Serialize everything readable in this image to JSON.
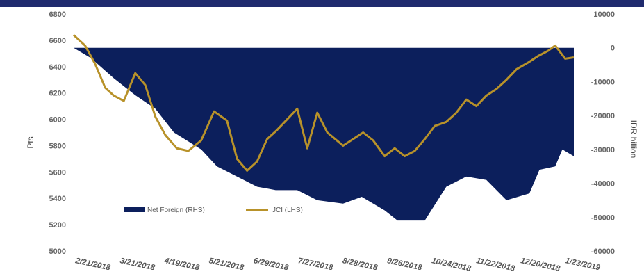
{
  "colors": {
    "net_foreign": "#0c1f5c",
    "jci": "#b8922a",
    "banner": "#1f2a6e",
    "banner_text": "#f0c020"
  },
  "chart_data": {
    "type": "area+line",
    "title": "",
    "ylabel_left": "Pts",
    "ylabel_right": "IDR billion",
    "ylim_left": [
      5000,
      6800
    ],
    "yticks_left": [
      5000,
      5200,
      5400,
      5600,
      5800,
      6000,
      6200,
      6400,
      6600,
      6800
    ],
    "ylim_right": [
      -60000,
      10000
    ],
    "yticks_right": [
      -60000,
      -50000,
      -40000,
      -30000,
      -20000,
      -10000,
      0,
      10000
    ],
    "ytick_labels_right": [
      "-60000",
      "-50000",
      "-40000",
      "-30000",
      "-20000",
      "-10000",
      "0",
      "10000"
    ],
    "x_tick_labels": [
      "2/21/2018",
      "3/21/2018",
      "4/19/2018",
      "5/21/2018",
      "6/29/2018",
      "7/27/2018",
      "8/28/2018",
      "9/26/2018",
      "10/24/2018",
      "11/22/2018",
      "12/20/2018",
      "1/23/2019"
    ],
    "legend_position": "bottom-left",
    "series": [
      {
        "name": "Net Foreign (RHS)",
        "type": "area",
        "axis": "right",
        "x": [
          "2018-02-21",
          "2018-03-05",
          "2018-03-21",
          "2018-04-05",
          "2018-04-19",
          "2018-05-02",
          "2018-05-21",
          "2018-06-01",
          "2018-06-29",
          "2018-07-12",
          "2018-07-27",
          "2018-08-10",
          "2018-08-28",
          "2018-09-10",
          "2018-09-26",
          "2018-10-05",
          "2018-10-24",
          "2018-11-08",
          "2018-11-22",
          "2018-12-06",
          "2018-12-20",
          "2019-01-05",
          "2019-01-12",
          "2019-01-23",
          "2019-01-28",
          "2019-02-05"
        ],
        "values": [
          0,
          -3000,
          -9000,
          -14000,
          -18000,
          -25000,
          -30000,
          -35000,
          -41000,
          -42000,
          -42000,
          -45000,
          -46000,
          -44000,
          -48000,
          -51000,
          -51000,
          -41000,
          -38000,
          -39000,
          -45000,
          -43000,
          -36000,
          -35000,
          -30000,
          -32000
        ]
      },
      {
        "name": "JCI (LHS)",
        "type": "line",
        "axis": "left",
        "x": [
          "2018-02-21",
          "2018-03-01",
          "2018-03-08",
          "2018-03-15",
          "2018-03-21",
          "2018-03-28",
          "2018-04-05",
          "2018-04-12",
          "2018-04-19",
          "2018-04-26",
          "2018-05-04",
          "2018-05-12",
          "2018-05-21",
          "2018-05-30",
          "2018-06-08",
          "2018-06-15",
          "2018-06-22",
          "2018-06-29",
          "2018-07-06",
          "2018-07-13",
          "2018-07-20",
          "2018-07-27",
          "2018-08-03",
          "2018-08-10",
          "2018-08-17",
          "2018-08-28",
          "2018-09-04",
          "2018-09-11",
          "2018-09-18",
          "2018-09-26",
          "2018-10-03",
          "2018-10-10",
          "2018-10-17",
          "2018-10-24",
          "2018-10-31",
          "2018-11-08",
          "2018-11-15",
          "2018-11-22",
          "2018-11-29",
          "2018-12-06",
          "2018-12-13",
          "2018-12-20",
          "2018-12-27",
          "2019-01-04",
          "2019-01-11",
          "2019-01-18",
          "2019-01-23",
          "2019-01-30",
          "2019-02-05"
        ],
        "values": [
          6640,
          6560,
          6420,
          6240,
          6180,
          6140,
          6350,
          6260,
          6020,
          5880,
          5780,
          5760,
          5840,
          6060,
          5990,
          5700,
          5610,
          5680,
          5850,
          5920,
          6000,
          6080,
          5780,
          6050,
          5900,
          5800,
          5850,
          5900,
          5840,
          5720,
          5780,
          5720,
          5760,
          5850,
          5950,
          5980,
          6050,
          6150,
          6100,
          6180,
          6230,
          6300,
          6380,
          6430,
          6480,
          6520,
          6560,
          6460,
          6470
        ]
      }
    ]
  }
}
